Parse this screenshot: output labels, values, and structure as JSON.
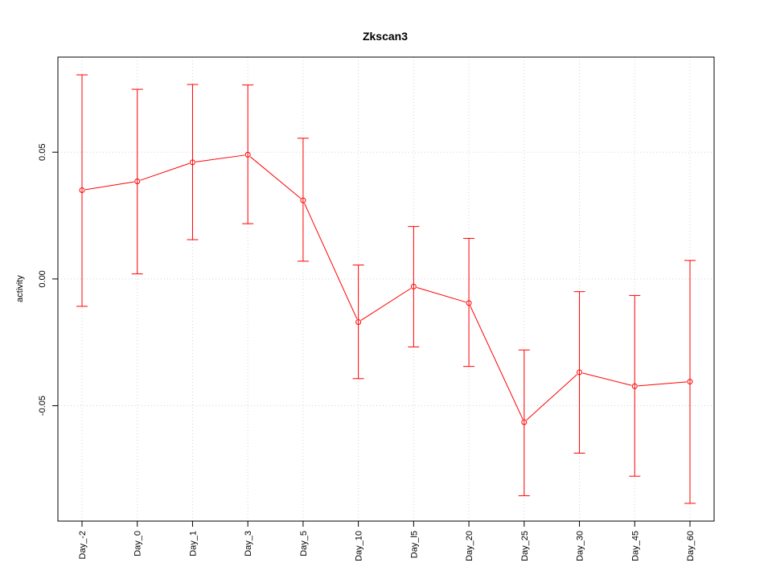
{
  "chart_data": {
    "type": "line",
    "title": "Zkscan3",
    "xlabel": "",
    "ylabel": "activity",
    "categories": [
      "Day_-2",
      "Day_0",
      "Day_1",
      "Day_3",
      "Day_5",
      "Day_10",
      "Day_l5",
      "Day_20",
      "Day_25",
      "Day_30",
      "Day_45",
      "Day_60"
    ],
    "series": [
      {
        "values": [
          0.035,
          0.0385,
          0.046,
          0.049,
          0.031,
          -0.017,
          -0.003,
          -0.0095,
          -0.0565,
          -0.0368,
          -0.0423,
          -0.0405
        ],
        "lower": [
          -0.0108,
          0.002,
          0.0155,
          0.0218,
          0.007,
          -0.0393,
          -0.0268,
          -0.0345,
          -0.0855,
          -0.0687,
          -0.0778,
          -0.0885
        ],
        "upper": [
          0.0805,
          0.0748,
          0.0767,
          0.0765,
          0.0555,
          0.0055,
          0.0207,
          0.016,
          -0.028,
          -0.005,
          -0.0065,
          0.0073
        ],
        "color": "#ff0000"
      }
    ],
    "yticks": [
      -0.05,
      0.0,
      0.05
    ],
    "ytick_labels": [
      "-0.05",
      "0.00",
      "0.05"
    ],
    "ylim": [
      -0.0955,
      0.0875
    ],
    "grid": true
  }
}
